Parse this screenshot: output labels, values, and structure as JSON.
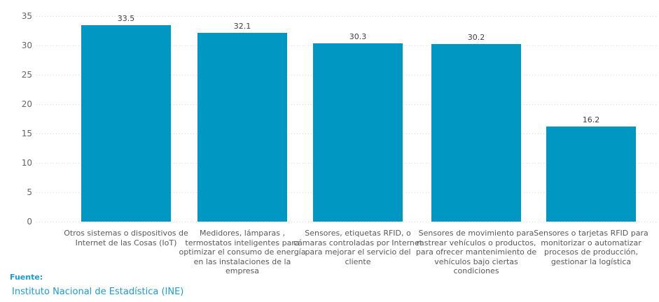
{
  "chart_data": {
    "type": "bar",
    "title": "",
    "xlabel": "",
    "ylabel": "",
    "ylim": [
      0,
      35
    ],
    "ytick_step": 5,
    "ytick_labels": [
      "0",
      "5",
      "10",
      "15",
      "20",
      "25",
      "30",
      "35"
    ],
    "grid": "horizontal-dotted",
    "legend": "none",
    "bar_color": "#0098c3",
    "categories": [
      "Otros sistemas o dispositivos de Internet de las Cosas (IoT)",
      "Medidores, lámparas , termostatos inteligentes para optimizar el consumo de energía en las instalaciones de la empresa",
      "Sensores, etiquetas RFID, o cámaras controladas por Internet para mejorar el servicio del cliente",
      "Sensores de movimiento para rastrear vehículos o productos, para ofrecer mantenimiento de vehículos bajo ciertas condiciones",
      "Sensores o tarjetas RFID para monitorizar o automatizar procesos de producción, gestionar la logística"
    ],
    "values": [
      33.5,
      32.1,
      30.3,
      30.2,
      16.2
    ],
    "value_labels": [
      "33.5",
      "32.1",
      "30.3",
      "30.2",
      "16.2"
    ]
  },
  "source": {
    "label": "Fuente:",
    "link": "Instituto Nacional de Estadística (INE)"
  },
  "colors": {
    "bar": "#0098c3",
    "gridline": "#d7d7d7",
    "axis_text": "#666666",
    "value_text": "#404040",
    "category_text": "#595959",
    "source_text": "#1b9cd3"
  }
}
